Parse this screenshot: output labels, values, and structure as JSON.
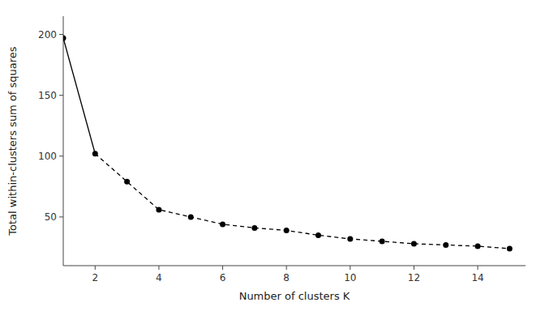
{
  "chart_data": {
    "type": "line",
    "x": [
      1,
      2,
      3,
      4,
      5,
      6,
      7,
      8,
      9,
      10,
      11,
      12,
      13,
      14,
      15
    ],
    "values": [
      197,
      102,
      79,
      56,
      50,
      44,
      41,
      39,
      35,
      32,
      30,
      28,
      27,
      26,
      24
    ],
    "xlabel": "Number of clusters K",
    "ylabel": "Total within-clusters sum of squares",
    "xlim": [
      1,
      15.5
    ],
    "ylim": [
      10,
      215
    ],
    "xticks": [
      2,
      4,
      6,
      8,
      10,
      12,
      14
    ],
    "yticks": [
      50,
      100,
      150,
      200
    ],
    "color": "#000000",
    "marker": "circle",
    "line_style": "dashed",
    "grid": false
  }
}
